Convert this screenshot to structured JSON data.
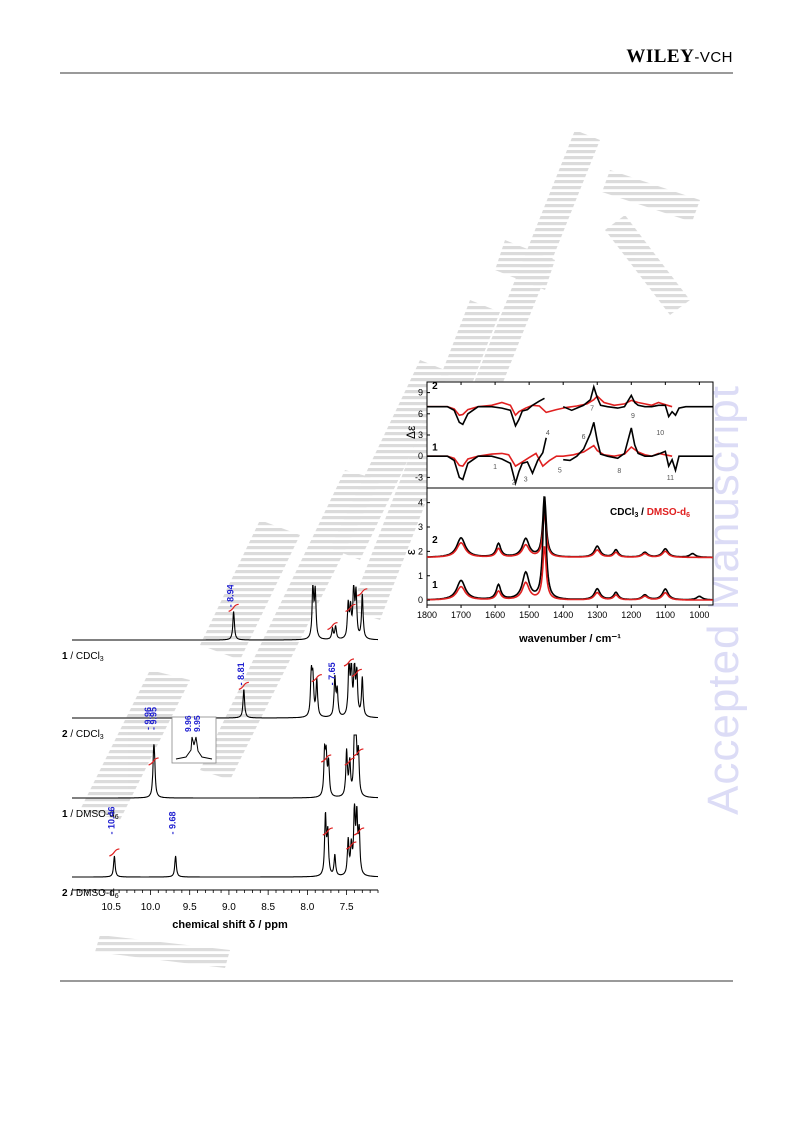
{
  "header": {
    "publisher_main": "WILEY",
    "publisher_suffix": "-VCH"
  },
  "watermark": "Accepted Manuscript",
  "figures": [
    {
      "name": "ir-vcd-spectra",
      "chart_data": {
        "type": "line",
        "xlabel": "wavenumber / cm⁻¹",
        "x_ticks": [
          "1800",
          "1700",
          "1600",
          "1500",
          "1400",
          "1300",
          "1200",
          "1100",
          "1000"
        ],
        "xlim": [
          1800,
          960
        ],
        "legend": {
          "text_a": "CDCl",
          "sub_a": "3",
          "sep": " / ",
          "text_b": "DMSO-d",
          "sub_b": "6"
        },
        "colors": {
          "cdcl3": "#000000",
          "dmso": "#e02020"
        },
        "top_panel": {
          "ylabel": "Δε",
          "y_ticks": [
            "9",
            "6",
            "3",
            "0",
            "-3"
          ],
          "ylim": [
            -4.5,
            10.5
          ],
          "series_labels": [
            "2",
            "1"
          ],
          "band_labels": [
            "1",
            "2",
            "3",
            "4",
            "5",
            "6",
            "7",
            "8",
            "9",
            "10",
            "11"
          ],
          "series": [
            {
              "name": "2",
              "solvent": "CDCl3",
              "offset": 7,
              "x": [
                1800,
                1740,
                1720,
                1705,
                1695,
                1680,
                1650,
                1610,
                1580,
                1555,
                1540,
                1530,
                1520,
                1505,
                1490,
                1470,
                1455,
                1440,
                1400,
                1375,
                1360,
                1340,
                1320,
                1310,
                1300,
                1290,
                1270,
                1240,
                1220,
                1200,
                1190,
                1180,
                1160,
                1140,
                1120,
                1100,
                1090,
                1080,
                1070,
                1060,
                1040,
                1000,
                960
              ],
              "y": [
                7,
                7,
                6.5,
                4.8,
                4.5,
                6,
                7,
                7,
                6.8,
                6.5,
                4.3,
                5.2,
                6.4,
                6.6,
                7.2,
                7.8,
                8.2,
                null,
                7,
                6.5,
                6.8,
                7.2,
                8,
                9.8,
                8.3,
                7.2,
                7,
                6.8,
                7,
                8.6,
                7.6,
                7.2,
                7,
                7,
                7.2,
                7.2,
                5.6,
                6.3,
                5.8,
                6.8,
                7,
                7,
                7
              ]
            },
            {
              "name": "2",
              "solvent": "DMSO-d6",
              "offset": 7,
              "x": [
                1800,
                1740,
                1720,
                1705,
                1695,
                1680,
                1650,
                1610,
                1580,
                1555,
                1540,
                1530,
                1510,
                1490,
                1470,
                1450,
                1420,
                1390,
                1360,
                1330,
                1310,
                1300,
                1280,
                1250,
                1220,
                1200,
                1180,
                1160,
                1140,
                1120,
                1100,
                1080
              ],
              "y": [
                7,
                7,
                6.7,
                5.8,
                5.9,
                6.6,
                7,
                7.2,
                7.6,
                7.2,
                5.8,
                6.3,
                6.8,
                7.2,
                7.1,
                6.2,
                6.6,
                6.9,
                7.1,
                7.4,
                8,
                8.5,
                7.6,
                7.2,
                7.4,
                7.9,
                7.6,
                7.4,
                7.2,
                7.6,
                7.3,
                7
              ]
            },
            {
              "name": "1",
              "solvent": "CDCl3",
              "offset": 0,
              "x": [
                1800,
                1740,
                1720,
                1705,
                1695,
                1680,
                1650,
                1610,
                1580,
                1555,
                1540,
                1530,
                1520,
                1505,
                1490,
                1475,
                1460,
                1450,
                1440,
                1400,
                1380,
                1360,
                1340,
                1320,
                1310,
                1300,
                1290,
                1270,
                1240,
                1220,
                1200,
                1190,
                1180,
                1160,
                1140,
                1120,
                1100,
                1090,
                1080,
                1070,
                1060,
                1040,
                1000,
                960
              ],
              "y": [
                0,
                0,
                -0.6,
                -3,
                -3.3,
                -1,
                0,
                0,
                -0.4,
                -1,
                -3.8,
                -2.2,
                -1,
                -0.8,
                -2.4,
                -0.6,
                0.5,
                2.6,
                null,
                -0.5,
                -0.6,
                0,
                1,
                3.2,
                4.8,
                2.2,
                0.3,
                0,
                -0.3,
                0.4,
                4,
                1.6,
                0.4,
                0,
                0,
                0.3,
                0.7,
                -1.4,
                -0.5,
                -2,
                0,
                0,
                0,
                0
              ]
            },
            {
              "name": "1",
              "solvent": "DMSO-d6",
              "offset": 0,
              "x": [
                1800,
                1740,
                1720,
                1705,
                1695,
                1680,
                1650,
                1610,
                1580,
                1560,
                1540,
                1520,
                1500,
                1480,
                1460,
                1440,
                1420,
                1400,
                1370,
                1340,
                1320,
                1310,
                1300,
                1280,
                1250,
                1220,
                1200,
                1180,
                1160,
                1140,
                1120,
                1100,
                1080
              ],
              "y": [
                0,
                0,
                -0.3,
                -1.3,
                -1.4,
                -0.4,
                0,
                0.3,
                0.4,
                0.2,
                -1.4,
                -0.8,
                -0.2,
                0.4,
                -1.4,
                -0.6,
                0,
                0,
                0.2,
                0.6,
                1.2,
                1.5,
                0.8,
                0.2,
                0,
                0.3,
                1.3,
                0.6,
                0.2,
                0,
                0.4,
                0.2,
                0
              ]
            }
          ]
        },
        "bottom_panel": {
          "ylabel": "ε",
          "y_ticks": [
            "4",
            "3",
            "2",
            "1",
            "0"
          ],
          "ylim": [
            -0.2,
            4.6
          ],
          "series_labels": [
            "2",
            "1"
          ],
          "series": [
            {
              "name": "2",
              "solvent": "CDCl3",
              "offset": 1.75,
              "peaks": [
                [
                  1700,
                  0.8,
                  15
                ],
                [
                  1590,
                  0.55,
                  8
                ],
                [
                  1510,
                  0.75,
                  12
                ],
                [
                  1455,
                  2.5,
                  6
                ],
                [
                  1300,
                  0.45,
                  10
                ],
                [
                  1245,
                  0.3,
                  8
                ],
                [
                  1160,
                  0.2,
                  10
                ],
                [
                  1100,
                  0.35,
                  10
                ],
                [
                  1020,
                  0.15,
                  10
                ]
              ]
            },
            {
              "name": "2",
              "solvent": "DMSO-d6",
              "offset": 1.75,
              "peaks": [
                [
                  1700,
                  0.6,
                  15
                ],
                [
                  1590,
                  0.35,
                  8
                ],
                [
                  1510,
                  0.5,
                  12
                ],
                [
                  1455,
                  1.8,
                  6
                ],
                [
                  1300,
                  0.3,
                  10
                ],
                [
                  1245,
                  0.2,
                  8
                ],
                [
                  1160,
                  0.15,
                  10
                ],
                [
                  1100,
                  0.25,
                  10
                ]
              ]
            },
            {
              "name": "1",
              "solvent": "CDCl3",
              "offset": 0,
              "peaks": [
                [
                  1700,
                  0.8,
                  15
                ],
                [
                  1590,
                  0.6,
                  8
                ],
                [
                  1510,
                  1.1,
                  12
                ],
                [
                  1455,
                  4.1,
                  6
                ],
                [
                  1300,
                  0.45,
                  10
                ],
                [
                  1245,
                  0.3,
                  8
                ],
                [
                  1160,
                  0.2,
                  10
                ],
                [
                  1100,
                  0.45,
                  10
                ],
                [
                  1000,
                  0.15,
                  10
                ]
              ]
            },
            {
              "name": "1",
              "solvent": "DMSO-d6",
              "offset": 0,
              "peaks": [
                [
                  1700,
                  0.55,
                  15
                ],
                [
                  1590,
                  0.35,
                  8
                ],
                [
                  1510,
                  0.7,
                  12
                ],
                [
                  1455,
                  2.2,
                  6
                ],
                [
                  1300,
                  0.3,
                  10
                ],
                [
                  1245,
                  0.2,
                  8
                ],
                [
                  1160,
                  0.15,
                  10
                ],
                [
                  1100,
                  0.3,
                  10
                ]
              ]
            }
          ]
        }
      }
    },
    {
      "name": "nmr-spectra",
      "chart_data": {
        "type": "line",
        "xlabel": "chemical shift δ / ppm",
        "x_ticks": [
          "10.5",
          "10.0",
          "9.5",
          "9.0",
          "8.5",
          "8.0",
          "7.5"
        ],
        "xlim": [
          11.0,
          7.1
        ],
        "traces": [
          {
            "label_bold": "1",
            "label_rest": " / CDCl",
            "label_sub": "3",
            "peak_labels": [
              "8.94"
            ],
            "peaks": [
              [
                8.94,
                0.55
              ],
              [
                7.93,
                1.0
              ],
              [
                7.9,
                0.9
              ],
              [
                7.68,
                0.2
              ],
              [
                7.64,
                0.25
              ],
              [
                7.48,
                0.65
              ],
              [
                7.45,
                0.55
              ],
              [
                7.41,
                0.95
              ],
              [
                7.38,
                0.85
              ],
              [
                7.3,
                0.85
              ]
            ]
          },
          {
            "label_bold": "2",
            "label_rest": " / CDCl",
            "label_sub": "3",
            "peak_labels": [
              "8.81",
              "7.65"
            ],
            "peaks": [
              [
                8.81,
                0.55
              ],
              [
                7.95,
                0.8
              ],
              [
                7.93,
                0.7
              ],
              [
                7.88,
                0.7
              ],
              [
                7.65,
                0.75
              ],
              [
                7.62,
                0.5
              ],
              [
                7.47,
                1.0
              ],
              [
                7.44,
                0.9
              ],
              [
                7.4,
                0.9
              ],
              [
                7.37,
                0.8
              ],
              [
                7.3,
                0.75
              ]
            ]
          },
          {
            "label_bold": "1",
            "label_rest": " / DMSO-d",
            "label_sub": "6",
            "peak_labels": [
              "9.96",
              "9.95"
            ],
            "inset_labels": [
              "9.96",
              "9.95"
            ],
            "peaks": [
              [
                9.96,
                0.55
              ],
              [
                9.95,
                0.5
              ],
              [
                7.78,
                0.7
              ],
              [
                7.76,
                0.6
              ],
              [
                7.73,
                0.55
              ],
              [
                7.5,
                0.75
              ],
              [
                7.46,
                0.55
              ],
              [
                7.4,
                0.95
              ],
              [
                7.38,
                0.85
              ],
              [
                7.35,
                0.7
              ]
            ]
          },
          {
            "label_bold": "2",
            "label_rest": " / DMSO-d",
            "label_sub": "6",
            "peak_labels": [
              "10.46",
              "9.68"
            ],
            "peaks": [
              [
                10.46,
                0.3
              ],
              [
                9.68,
                0.3
              ],
              [
                7.77,
                0.85
              ],
              [
                7.74,
                0.6
              ],
              [
                7.65,
                0.3
              ],
              [
                7.48,
                0.5
              ],
              [
                7.44,
                0.4
              ],
              [
                7.4,
                0.9
              ],
              [
                7.37,
                0.8
              ],
              [
                7.34,
                0.6
              ]
            ]
          }
        ]
      }
    }
  ]
}
